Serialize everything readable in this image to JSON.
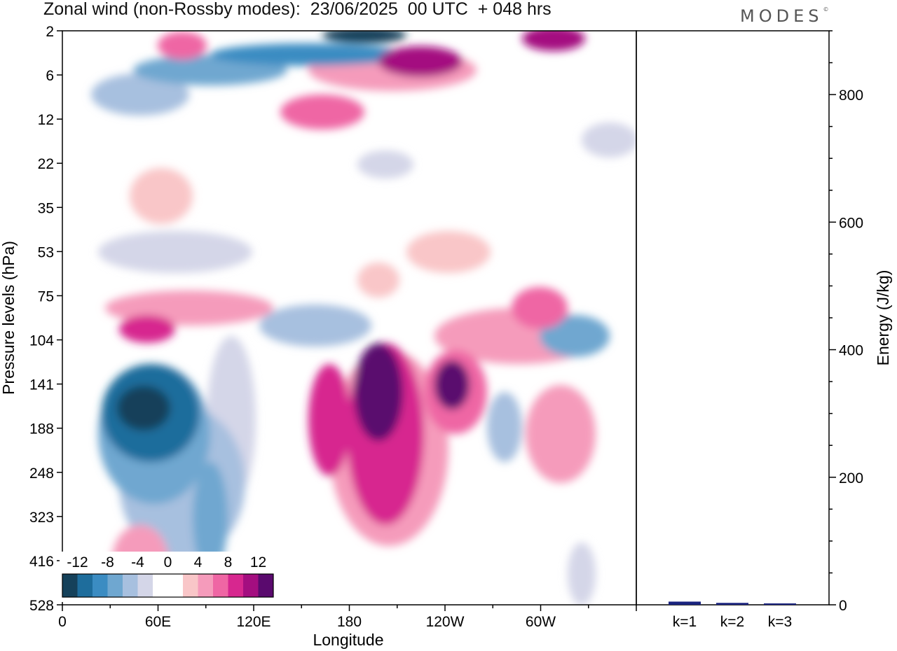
{
  "logo": {
    "text": "MODES",
    "mark": "©"
  },
  "chart_data": [
    {
      "type": "heatmap",
      "title": "Zonal wind (non-Rossby modes):  23/06/2025  00 UTC  + 048 hrs",
      "xlabel": "Longitude",
      "ylabel": "Pressure levels (hPa)",
      "xticks": [
        "0",
        "60E",
        "120E",
        "180",
        "120W",
        "60W"
      ],
      "yticks": [
        "2",
        "6",
        "12",
        "22",
        "35",
        "53",
        "75",
        "104",
        "141",
        "188",
        "248",
        "323",
        "416",
        "528"
      ],
      "colorbar": {
        "labels": [
          "-12",
          "-8",
          "-4",
          "0",
          "4",
          "8",
          "12"
        ],
        "colors": [
          "#15415a",
          "#1e6d9c",
          "#3b8cc2",
          "#6fa7d0",
          "#a7c0df",
          "#d4d6e8",
          "#ffffff",
          "#ffffff",
          "#f9c6c8",
          "#f59bbb",
          "#ef66a4",
          "#d7278f",
          "#a40e80",
          "#5a0a6e"
        ]
      },
      "blobs": [
        {
          "cx": 205,
          "cy": 583,
          "rx": 38,
          "ry": 32,
          "v": -13
        },
        {
          "cx": 215,
          "cy": 590,
          "rx": 70,
          "ry": 70,
          "v": -10
        },
        {
          "cx": 220,
          "cy": 620,
          "rx": 80,
          "ry": 100,
          "v": -6
        },
        {
          "cx": 260,
          "cy": 690,
          "rx": 90,
          "ry": 110,
          "v": -3
        },
        {
          "cx": 300,
          "cy": 740,
          "rx": 25,
          "ry": 80,
          "v": -6
        },
        {
          "cx": 330,
          "cy": 600,
          "rx": 35,
          "ry": 120,
          "v": -2
        },
        {
          "cx": 520,
          "cy": 50,
          "rx": 60,
          "ry": 12,
          "v": -12
        },
        {
          "cx": 440,
          "cy": 78,
          "rx": 140,
          "ry": 16,
          "v": -8
        },
        {
          "cx": 300,
          "cy": 100,
          "rx": 110,
          "ry": 22,
          "v": -6
        },
        {
          "cx": 200,
          "cy": 135,
          "rx": 70,
          "ry": 30,
          "v": -3
        },
        {
          "cx": 250,
          "cy": 360,
          "rx": 110,
          "ry": 30,
          "v": -2
        },
        {
          "cx": 450,
          "cy": 465,
          "rx": 80,
          "ry": 30,
          "v": -3
        },
        {
          "cx": 820,
          "cy": 480,
          "rx": 50,
          "ry": 30,
          "v": -6
        },
        {
          "cx": 720,
          "cy": 610,
          "rx": 25,
          "ry": 50,
          "v": -3
        },
        {
          "cx": 830,
          "cy": 820,
          "rx": 20,
          "ry": 45,
          "v": -1
        },
        {
          "cx": 550,
          "cy": 235,
          "rx": 40,
          "ry": 20,
          "v": -1
        },
        {
          "cx": 870,
          "cy": 200,
          "rx": 40,
          "ry": 25,
          "v": -1
        },
        {
          "cx": 540,
          "cy": 560,
          "rx": 35,
          "ry": 70,
          "v": 12
        },
        {
          "cx": 550,
          "cy": 620,
          "rx": 55,
          "ry": 130,
          "v": 8
        },
        {
          "cx": 555,
          "cy": 640,
          "rx": 85,
          "ry": 140,
          "v": 4
        },
        {
          "cx": 470,
          "cy": 600,
          "rx": 30,
          "ry": 80,
          "v": 7
        },
        {
          "cx": 645,
          "cy": 550,
          "rx": 25,
          "ry": 35,
          "v": 11
        },
        {
          "cx": 650,
          "cy": 560,
          "rx": 45,
          "ry": 60,
          "v": 6
        },
        {
          "cx": 600,
          "cy": 88,
          "rx": 60,
          "ry": 22,
          "v": 9
        },
        {
          "cx": 560,
          "cy": 100,
          "rx": 120,
          "ry": 30,
          "v": 4
        },
        {
          "cx": 260,
          "cy": 65,
          "rx": 35,
          "ry": 20,
          "v": 6
        },
        {
          "cx": 790,
          "cy": 55,
          "rx": 45,
          "ry": 18,
          "v": 9
        },
        {
          "cx": 210,
          "cy": 470,
          "rx": 40,
          "ry": 20,
          "v": 8
        },
        {
          "cx": 270,
          "cy": 440,
          "rx": 120,
          "ry": 25,
          "v": 3
        },
        {
          "cx": 770,
          "cy": 440,
          "rx": 40,
          "ry": 30,
          "v": 6
        },
        {
          "cx": 740,
          "cy": 480,
          "rx": 120,
          "ry": 40,
          "v": 3
        },
        {
          "cx": 800,
          "cy": 620,
          "rx": 50,
          "ry": 70,
          "v": 3
        },
        {
          "cx": 460,
          "cy": 160,
          "rx": 60,
          "ry": 25,
          "v": 5
        },
        {
          "cx": 230,
          "cy": 280,
          "rx": 45,
          "ry": 40,
          "v": 2
        },
        {
          "cx": 640,
          "cy": 360,
          "rx": 60,
          "ry": 30,
          "v": 2
        },
        {
          "cx": 540,
          "cy": 400,
          "rx": 30,
          "ry": 25,
          "v": 2
        },
        {
          "cx": 200,
          "cy": 800,
          "rx": 40,
          "ry": 50,
          "v": 3
        }
      ]
    },
    {
      "type": "bar",
      "ylabel": "Energy (J/kg)",
      "categories": [
        "k=1",
        "k=2",
        "k=3"
      ],
      "values": [
        5,
        3,
        2
      ],
      "ylim": [
        0,
        900
      ],
      "yticks": [
        "0",
        "200",
        "400",
        "600",
        "800"
      ],
      "bar_color": "#1a237e"
    }
  ]
}
